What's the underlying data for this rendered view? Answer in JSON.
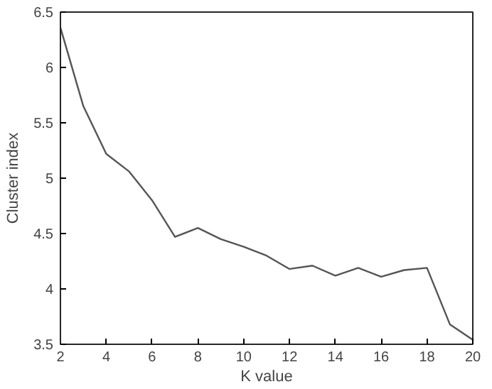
{
  "chart_data": {
    "type": "line",
    "xlabel": "K value",
    "ylabel": "Cluster index",
    "x": [
      2,
      3,
      4,
      5,
      6,
      7,
      8,
      9,
      10,
      11,
      12,
      13,
      14,
      15,
      16,
      17,
      18,
      19,
      20
    ],
    "series": [
      {
        "color": "#555555",
        "values": [
          6.36,
          5.65,
          5.22,
          5.06,
          4.8,
          4.47,
          4.55,
          4.45,
          4.38,
          4.3,
          4.18,
          4.21,
          4.12,
          4.19,
          4.11,
          4.17,
          4.19,
          3.68,
          3.54
        ]
      }
    ],
    "xlim": [
      2,
      20
    ],
    "xticks": [
      2,
      4,
      6,
      8,
      10,
      12,
      14,
      16,
      18,
      20
    ],
    "ylim": [
      3.5,
      6.5
    ],
    "yticks": [
      3.5,
      4,
      4.5,
      5,
      5.5,
      6,
      6.5
    ],
    "grid": false,
    "marker": "none",
    "line_style": "solid"
  }
}
